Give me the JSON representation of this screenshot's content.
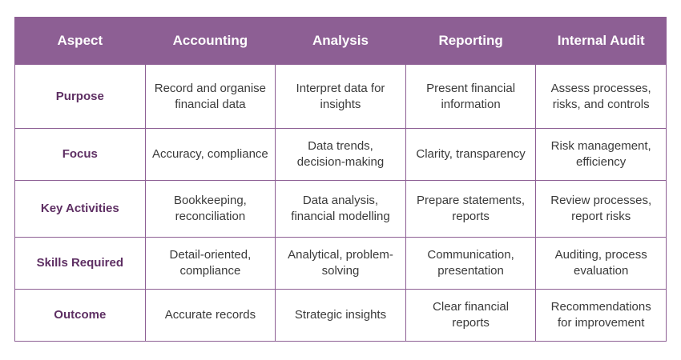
{
  "table": {
    "header": [
      "Aspect",
      "Accounting",
      "Analysis",
      "Reporting",
      "Internal Audit"
    ],
    "rows": [
      [
        "Purpose",
        "Record and organise financial data",
        "Interpret data for insights",
        "Present financial information",
        "Assess processes, risks, and controls"
      ],
      [
        "Focus",
        "Accuracy, compliance",
        "Data trends, decision-making",
        "Clarity, transparency",
        "Risk management, efficiency"
      ],
      [
        "Key Activities",
        "Bookkeeping, reconciliation",
        "Data analysis, financial modelling",
        "Prepare statements, reports",
        "Review processes, report risks"
      ],
      [
        "Skills Required",
        "Detail-oriented, compliance",
        "Analytical, problem-solving",
        "Communication, presentation",
        "Auditing, process evaluation"
      ],
      [
        "Outcome",
        "Accurate records",
        "Strategic insights",
        "Clear financial reports",
        "Recommendations for improvement"
      ]
    ]
  }
}
